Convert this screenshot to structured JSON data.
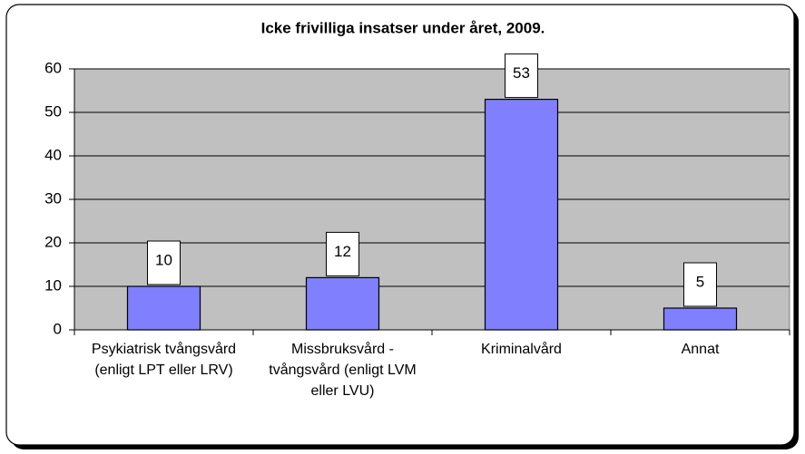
{
  "chart_data": {
    "type": "bar",
    "title": "Icke frivilliga insatser under året, 2009.",
    "categories": [
      "Psykiatrisk tvångsvård (enligt LPT eller LRV)",
      "Missbruksvård - tvångsvård (enligt LVM eller LVU)",
      "Kriminalvård",
      "Annat"
    ],
    "values": [
      10,
      12,
      53,
      5
    ],
    "color": "#8080ff",
    "plot_color": "#c0c0c0",
    "ylim": [
      0,
      60
    ],
    "yticks": [
      0,
      10,
      20,
      30,
      40,
      50,
      60
    ],
    "grid": true
  }
}
